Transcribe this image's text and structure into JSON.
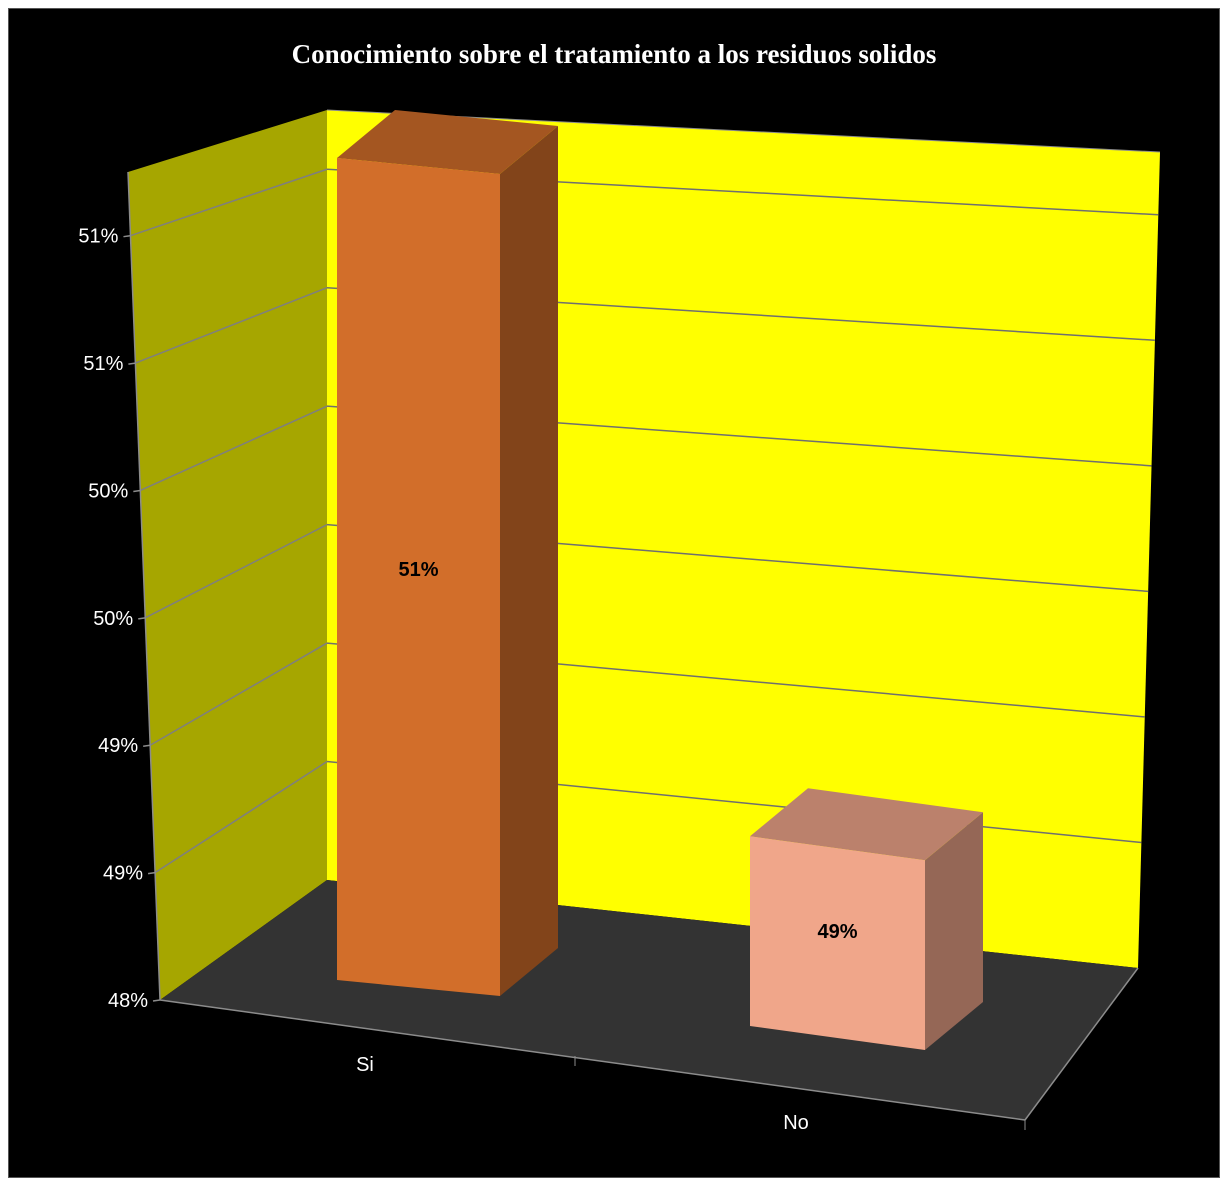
{
  "chart_data": {
    "type": "bar",
    "title": "Conocimiento sobre el tratamiento a los residuos solidos",
    "categories": [
      "Si",
      "No"
    ],
    "values": [
      0.5125,
      0.4875
    ],
    "data_labels": [
      "51%",
      "49%"
    ],
    "ylim": [
      0.48,
      0.5125
    ],
    "ytick_values": [
      0.48,
      0.485,
      0.49,
      0.495,
      0.5,
      0.505,
      0.51
    ],
    "ytick_labels": [
      "48%",
      "49%",
      "49%",
      "50%",
      "50%",
      "51%",
      "51%"
    ],
    "xlabel": "",
    "ylabel": "",
    "grid": true,
    "colors": {
      "background": "#000000",
      "back_wall": "#ffff00",
      "side_wall": "#a6a600",
      "floor": "#333333",
      "gridline": "#7f7f7f",
      "bars": [
        "#d26e2a",
        "#f0a68a"
      ]
    }
  }
}
